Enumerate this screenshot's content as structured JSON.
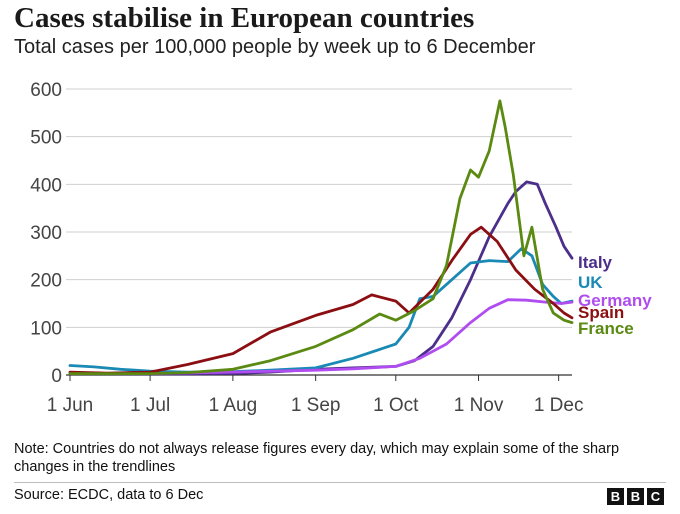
{
  "header": {
    "title": "Cases stabilise in European countries",
    "subtitle": "Total cases per 100,000 people by week up to 6 December"
  },
  "footer": {
    "note": "Note: Countries do not always release figures every day, which may explain some of the sharp changes in the trendlines",
    "source": "Source: ECDC, data to 6 Dec",
    "logo_letters": [
      "B",
      "B",
      "C"
    ]
  },
  "chart_data": {
    "type": "line",
    "title": "Cases stabilise in European countries",
    "subtitle": "Total cases per 100,000 people by week up to 6 December",
    "x_type": "date",
    "xlim": [
      "2020-06-01",
      "2020-12-06"
    ],
    "ylim": [
      0,
      600
    ],
    "yticks": [
      0,
      100,
      200,
      300,
      400,
      500,
      600
    ],
    "xticks": [
      {
        "date": "2020-06-01",
        "label": "1 Jun"
      },
      {
        "date": "2020-07-01",
        "label": "1 Jul"
      },
      {
        "date": "2020-08-01",
        "label": "1 Aug"
      },
      {
        "date": "2020-09-01",
        "label": "1 Sep"
      },
      {
        "date": "2020-10-01",
        "label": "1 Oct"
      },
      {
        "date": "2020-11-01",
        "label": "1 Nov"
      },
      {
        "date": "2020-12-01",
        "label": "1 Dec"
      }
    ],
    "grid": "horizontal",
    "legend": "direct labels at line ends",
    "series": [
      {
        "name": "Italy",
        "color": "#4b2f8a",
        "points": [
          [
            "2020-06-01",
            4
          ],
          [
            "2020-06-15",
            3
          ],
          [
            "2020-07-01",
            2
          ],
          [
            "2020-07-15",
            2
          ],
          [
            "2020-08-01",
            3
          ],
          [
            "2020-08-15",
            6
          ],
          [
            "2020-09-01",
            12
          ],
          [
            "2020-09-15",
            15
          ],
          [
            "2020-10-01",
            18
          ],
          [
            "2020-10-08",
            30
          ],
          [
            "2020-10-15",
            60
          ],
          [
            "2020-10-22",
            120
          ],
          [
            "2020-10-29",
            200
          ],
          [
            "2020-11-05",
            290
          ],
          [
            "2020-11-12",
            360
          ],
          [
            "2020-11-15",
            385
          ],
          [
            "2020-11-19",
            405
          ],
          [
            "2020-11-23",
            400
          ],
          [
            "2020-11-26",
            360
          ],
          [
            "2020-11-30",
            310
          ],
          [
            "2020-12-03",
            270
          ],
          [
            "2020-12-06",
            245
          ]
        ]
      },
      {
        "name": "UK",
        "color": "#1a8ab5",
        "points": [
          [
            "2020-06-01",
            20
          ],
          [
            "2020-06-10",
            17
          ],
          [
            "2020-06-20",
            12
          ],
          [
            "2020-07-01",
            8
          ],
          [
            "2020-07-15",
            6
          ],
          [
            "2020-08-01",
            7
          ],
          [
            "2020-08-15",
            10
          ],
          [
            "2020-09-01",
            15
          ],
          [
            "2020-09-15",
            35
          ],
          [
            "2020-10-01",
            65
          ],
          [
            "2020-10-06",
            100
          ],
          [
            "2020-10-10",
            160
          ],
          [
            "2020-10-15",
            165
          ],
          [
            "2020-10-22",
            200
          ],
          [
            "2020-10-29",
            235
          ],
          [
            "2020-11-05",
            240
          ],
          [
            "2020-11-12",
            238
          ],
          [
            "2020-11-17",
            265
          ],
          [
            "2020-11-21",
            250
          ],
          [
            "2020-11-25",
            190
          ],
          [
            "2020-11-29",
            165
          ],
          [
            "2020-12-02",
            150
          ],
          [
            "2020-12-06",
            155
          ]
        ]
      },
      {
        "name": "Germany",
        "color": "#b04cf0",
        "points": [
          [
            "2020-06-01",
            3
          ],
          [
            "2020-07-01",
            3
          ],
          [
            "2020-08-01",
            6
          ],
          [
            "2020-09-01",
            10
          ],
          [
            "2020-09-15",
            13
          ],
          [
            "2020-10-01",
            18
          ],
          [
            "2020-10-10",
            35
          ],
          [
            "2020-10-20",
            65
          ],
          [
            "2020-10-29",
            110
          ],
          [
            "2020-11-05",
            140
          ],
          [
            "2020-11-12",
            158
          ],
          [
            "2020-11-19",
            157
          ],
          [
            "2020-11-26",
            153
          ],
          [
            "2020-12-02",
            150
          ],
          [
            "2020-12-06",
            153
          ]
        ]
      },
      {
        "name": "Spain",
        "color": "#8b0f12",
        "points": [
          [
            "2020-06-01",
            6
          ],
          [
            "2020-06-15",
            4
          ],
          [
            "2020-07-01",
            6
          ],
          [
            "2020-07-15",
            22
          ],
          [
            "2020-08-01",
            45
          ],
          [
            "2020-08-15",
            90
          ],
          [
            "2020-09-01",
            125
          ],
          [
            "2020-09-15",
            148
          ],
          [
            "2020-09-22",
            168
          ],
          [
            "2020-10-01",
            155
          ],
          [
            "2020-10-06",
            130
          ],
          [
            "2020-10-15",
            180
          ],
          [
            "2020-10-22",
            240
          ],
          [
            "2020-10-29",
            295
          ],
          [
            "2020-11-02",
            310
          ],
          [
            "2020-11-08",
            280
          ],
          [
            "2020-11-15",
            220
          ],
          [
            "2020-11-22",
            180
          ],
          [
            "2020-11-29",
            150
          ],
          [
            "2020-12-03",
            130
          ],
          [
            "2020-12-06",
            120
          ]
        ]
      },
      {
        "name": "France",
        "color": "#5a8a12",
        "points": [
          [
            "2020-06-01",
            3
          ],
          [
            "2020-07-01",
            3
          ],
          [
            "2020-07-15",
            5
          ],
          [
            "2020-08-01",
            12
          ],
          [
            "2020-08-15",
            30
          ],
          [
            "2020-09-01",
            60
          ],
          [
            "2020-09-15",
            95
          ],
          [
            "2020-09-25",
            128
          ],
          [
            "2020-10-01",
            115
          ],
          [
            "2020-10-08",
            135
          ],
          [
            "2020-10-15",
            160
          ],
          [
            "2020-10-20",
            230
          ],
          [
            "2020-10-25",
            370
          ],
          [
            "2020-10-29",
            430
          ],
          [
            "2020-11-01",
            415
          ],
          [
            "2020-11-05",
            470
          ],
          [
            "2020-11-09",
            575
          ],
          [
            "2020-11-11",
            520
          ],
          [
            "2020-11-14",
            420
          ],
          [
            "2020-11-18",
            250
          ],
          [
            "2020-11-21",
            310
          ],
          [
            "2020-11-25",
            180
          ],
          [
            "2020-11-29",
            130
          ],
          [
            "2020-12-03",
            115
          ],
          [
            "2020-12-06",
            110
          ]
        ]
      }
    ]
  }
}
